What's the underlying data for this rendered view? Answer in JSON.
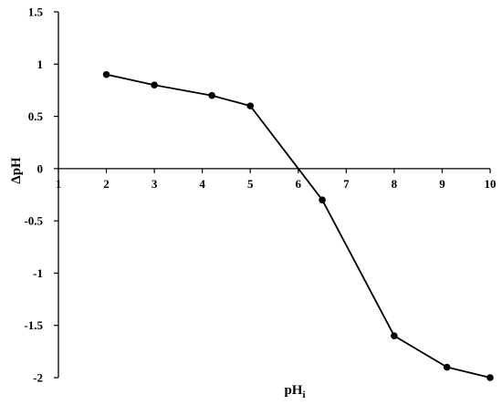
{
  "chart_data": {
    "type": "line",
    "xlabel": "pH",
    "xlabel_subscript": "i",
    "ylabel": "ΔpH",
    "xlim": [
      1,
      10
    ],
    "ylim": [
      -2,
      1.5
    ],
    "x_ticks": [
      1,
      2,
      3,
      4,
      5,
      6,
      7,
      8,
      9,
      10
    ],
    "y_ticks": [
      1.5,
      1,
      0.5,
      0,
      -0.5,
      -1,
      -1.5,
      -2
    ],
    "y_tick_labels": [
      "1.5",
      "1",
      "0.5",
      "0",
      "-0.5",
      "-1",
      "-1.5",
      "-2"
    ],
    "grid": false,
    "legend": "none",
    "series": [
      {
        "color": "#000000",
        "marker": "circle",
        "x": [
          2,
          3,
          4.2,
          5,
          6.5,
          8,
          9.1,
          10
        ],
        "y": [
          0.9,
          0.8,
          0.7,
          0.6,
          -0.3,
          -1.6,
          -1.9,
          -2.0
        ]
      }
    ]
  }
}
